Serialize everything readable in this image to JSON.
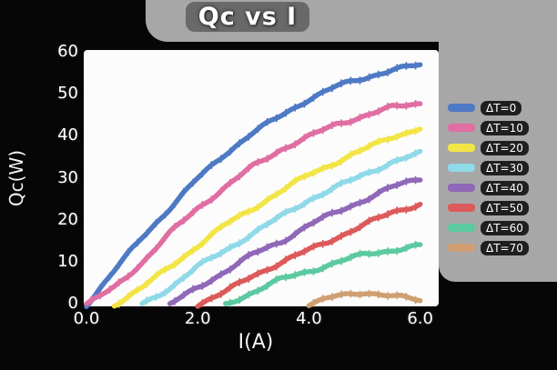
{
  "chart_data": {
    "type": "line",
    "title": "Qc vs I",
    "xlabel": "I(A)",
    "ylabel": "Qc(W)",
    "xlim": [
      0,
      6.3
    ],
    "ylim": [
      0,
      60
    ],
    "grid": false,
    "legend_position": "right",
    "x_ticks": [
      {
        "label": "0.0",
        "value": 0
      },
      {
        "label": "2.0",
        "value": 2
      },
      {
        "label": "4.0",
        "value": 4
      },
      {
        "label": "6.0",
        "value": 6
      }
    ],
    "y_ticks": [
      {
        "label": "0",
        "value": 0
      },
      {
        "label": "10",
        "value": 10
      },
      {
        "label": "20",
        "value": 20
      },
      {
        "label": "30",
        "value": 30
      },
      {
        "label": "40",
        "value": 40
      },
      {
        "label": "50",
        "value": 50
      },
      {
        "label": "60",
        "value": 60
      }
    ],
    "series": [
      {
        "name": "ΔT=0",
        "color": "#4e79c4",
        "x": [
          0,
          0.5,
          1,
          1.5,
          2,
          2.5,
          3,
          3.5,
          4,
          4.5,
          5,
          5.5,
          6
        ],
        "y": [
          0,
          8,
          16,
          23,
          30,
          36,
          41,
          45,
          49,
          52,
          54,
          56,
          57
        ]
      },
      {
        "name": "ΔT=10",
        "color": "#e06ea2",
        "x": [
          0,
          0.5,
          1,
          1.5,
          2,
          2.5,
          3,
          3.5,
          4,
          4.5,
          5,
          5.5,
          6
        ],
        "y": [
          0,
          4,
          10,
          17,
          23,
          28,
          33,
          37,
          40,
          43,
          45,
          47,
          48
        ]
      },
      {
        "name": "ΔT=20",
        "color": "#f2e545",
        "x": [
          0.5,
          1,
          1.5,
          2,
          2.5,
          3,
          3.5,
          4,
          4.5,
          5,
          5.5,
          6
        ],
        "y": [
          0,
          4,
          9,
          14,
          19,
          23,
          27,
          31,
          34,
          37,
          40,
          42
        ]
      },
      {
        "name": "ΔT=30",
        "color": "#8fd9e8",
        "x": [
          1,
          1.5,
          2,
          2.5,
          3,
          3.5,
          4,
          4.5,
          5,
          5.5,
          6
        ],
        "y": [
          0,
          4,
          9,
          13,
          17,
          21,
          25,
          28,
          31,
          34,
          36
        ]
      },
      {
        "name": "ΔT=40",
        "color": "#9068b8",
        "x": [
          1.5,
          2,
          2.5,
          3,
          3.5,
          4,
          4.5,
          5,
          5.5,
          6
        ],
        "y": [
          0,
          4,
          8,
          12,
          15,
          19,
          22,
          25,
          28,
          30
        ]
      },
      {
        "name": "ΔT=50",
        "color": "#dd5a5a",
        "x": [
          2,
          2.5,
          3,
          3.5,
          4,
          4.5,
          5,
          5.5,
          6
        ],
        "y": [
          0,
          3,
          7,
          10,
          13,
          16,
          19,
          22,
          24
        ]
      },
      {
        "name": "ΔT=60",
        "color": "#5cc9a0",
        "x": [
          2.5,
          3,
          3.5,
          4,
          4.5,
          5,
          5.5,
          6
        ],
        "y": [
          0,
          3,
          6,
          8,
          10,
          12,
          13,
          14
        ]
      },
      {
        "name": "ΔT=70",
        "color": "#cf9f72",
        "x": [
          4,
          4.5,
          5,
          5.5,
          6
        ],
        "y": [
          0,
          2,
          3,
          2,
          1
        ]
      }
    ]
  }
}
